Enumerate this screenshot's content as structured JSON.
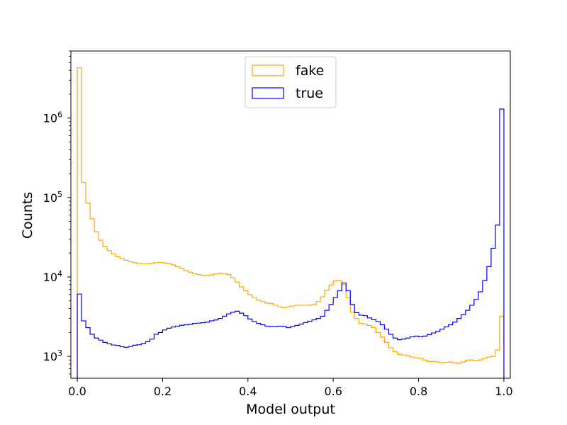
{
  "chart_data": {
    "type": "histogram",
    "xlabel": "Model output",
    "ylabel": "Counts",
    "y_scale": "log",
    "xlim": [
      -0.015,
      1.015
    ],
    "ylim": [
      530,
      7000000
    ],
    "x_ticks": [
      {
        "value": 0.0,
        "label": "0.0"
      },
      {
        "value": 0.2,
        "label": "0.2"
      },
      {
        "value": 0.4,
        "label": "0.4"
      },
      {
        "value": 0.6,
        "label": "0.6"
      },
      {
        "value": 0.8,
        "label": "0.8"
      },
      {
        "value": 1.0,
        "label": "1.0"
      }
    ],
    "y_ticks": [
      {
        "value": 1000,
        "base": "10",
        "exp": "3"
      },
      {
        "value": 10000,
        "base": "10",
        "exp": "4"
      },
      {
        "value": 100000,
        "base": "10",
        "exp": "5"
      },
      {
        "value": 1000000,
        "base": "10",
        "exp": "6"
      }
    ],
    "grid": false,
    "legend_position": "upper-center",
    "bin_edges_range": [
      0.0,
      1.0
    ],
    "bins": 100,
    "series": [
      {
        "name": "fake",
        "color": "#ffa500",
        "counts": [
          4300000,
          155000,
          85000,
          54000,
          37000,
          29000,
          24000,
          21500,
          19500,
          18000,
          17000,
          16200,
          15600,
          15100,
          14800,
          14600,
          14600,
          14800,
          15100,
          15200,
          15000,
          14700,
          14200,
          13500,
          12800,
          12000,
          11500,
          11000,
          10700,
          10500,
          10500,
          10600,
          10900,
          11100,
          11000,
          10700,
          9800,
          8600,
          7500,
          6700,
          6000,
          5500,
          5100,
          4900,
          4700,
          4600,
          4400,
          4200,
          4100,
          4200,
          4300,
          4400,
          4400,
          4400,
          4400,
          4500,
          4900,
          5600,
          6800,
          7900,
          8900,
          9000,
          8000,
          5500,
          3600,
          3000,
          2600,
          2550,
          2450,
          2300,
          2000,
          1750,
          1500,
          1280,
          1140,
          1060,
          1040,
          1020,
          980,
          960,
          940,
          900,
          860,
          860,
          850,
          830,
          840,
          850,
          830,
          820,
          850,
          900,
          900,
          880,
          900,
          940,
          980,
          1000,
          1200,
          3200
        ]
      },
      {
        "name": "true",
        "color": "#0000ff",
        "counts": [
          6100,
          2800,
          2300,
          1900,
          1700,
          1600,
          1500,
          1440,
          1390,
          1370,
          1320,
          1300,
          1330,
          1380,
          1400,
          1450,
          1530,
          1650,
          1900,
          2000,
          2150,
          2260,
          2340,
          2400,
          2460,
          2500,
          2530,
          2600,
          2620,
          2650,
          2700,
          2800,
          2870,
          3000,
          3200,
          3430,
          3600,
          3700,
          3500,
          3250,
          2950,
          2750,
          2600,
          2500,
          2400,
          2380,
          2380,
          2400,
          2380,
          2300,
          2380,
          2450,
          2550,
          2660,
          2770,
          2880,
          3000,
          3200,
          3800,
          4500,
          5500,
          6700,
          8400,
          6700,
          4500,
          3550,
          3300,
          3250,
          3050,
          2900,
          2750,
          2500,
          2200,
          1900,
          1700,
          1620,
          1650,
          1700,
          1760,
          1800,
          1760,
          1800,
          1880,
          1970,
          2050,
          2200,
          2350,
          2500,
          2700,
          3000,
          3350,
          3800,
          4400,
          5200,
          6500,
          9000,
          13500,
          23000,
          45000,
          1300000
        ]
      }
    ]
  }
}
